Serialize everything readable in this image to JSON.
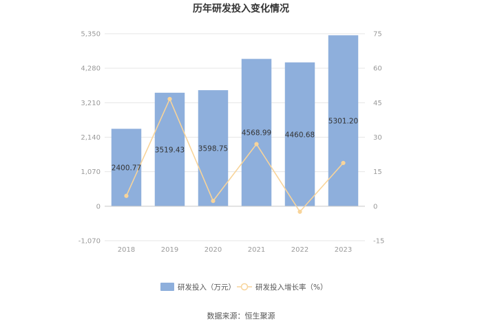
{
  "chart_data": {
    "type": "bar",
    "title": "历年研发投入变化情况",
    "categories": [
      "2018",
      "2019",
      "2020",
      "2021",
      "2022",
      "2023"
    ],
    "series": [
      {
        "name": "研发投入（万元）",
        "type": "bar",
        "axis": "left",
        "color": "#8eafdc",
        "values": [
          2400.77,
          3519.43,
          3598.75,
          4568.99,
          4460.68,
          5301.2
        ],
        "labels": [
          "2400.77",
          "3519.43",
          "3598.75",
          "4568.99",
          "4460.68",
          "5301.20"
        ]
      },
      {
        "name": "研发投入增长率（%）",
        "type": "line",
        "axis": "right",
        "color": "#f8d49a",
        "values": [
          4.5,
          46.6,
          2.3,
          27.0,
          -2.4,
          18.8
        ]
      }
    ],
    "left_axis": {
      "ylim": [
        -1070,
        5350
      ],
      "ticks": [
        5350,
        4280,
        3210,
        2140,
        1070,
        0,
        -1070
      ],
      "tick_labels": [
        "5,350",
        "4,280",
        "3,210",
        "2,140",
        "1,070",
        "0",
        "-1,070"
      ]
    },
    "right_axis": {
      "ylim": [
        -15,
        75
      ],
      "ticks": [
        75,
        60,
        45,
        30,
        15,
        0,
        -15
      ],
      "tick_labels": [
        "75",
        "60",
        "45",
        "30",
        "15",
        "0",
        "-15"
      ]
    },
    "grid": true,
    "legend_position": "bottom"
  },
  "source_text": "数据来源：恒生聚源"
}
